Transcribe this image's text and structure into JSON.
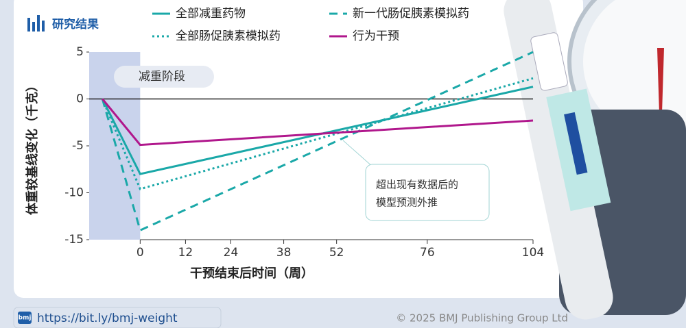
{
  "header": {
    "title": "研究结果"
  },
  "chart_data": {
    "type": "line",
    "x": [
      -10,
      0,
      104
    ],
    "series": [
      {
        "name": "全部减重药物",
        "color": "#1aa8a8",
        "style": "solid",
        "values": [
          0,
          -8,
          1.3
        ]
      },
      {
        "name": "新一代肠促胰素模拟药",
        "color": "#1aa8a8",
        "style": "dashed",
        "values": [
          0,
          -14,
          5
        ]
      },
      {
        "name": "全部肠促胰素模拟药",
        "color": "#1aa8a8",
        "style": "dotted",
        "values": [
          0,
          -9.6,
          2.2
        ]
      },
      {
        "name": "行为干预",
        "color": "#b0178c",
        "style": "solid",
        "values": [
          0,
          -4.9,
          -2.3
        ]
      }
    ],
    "xlim": [
      -13.5,
      104
    ],
    "xticks": [
      0,
      12,
      24,
      38,
      52,
      76,
      104
    ],
    "ylim": [
      -15,
      5
    ],
    "yticks": [
      5,
      0,
      -5,
      -10,
      -15
    ],
    "xlabel": "干预结束后时间（周）",
    "ylabel": "体重较基线变化（千克）",
    "annotations": {
      "phase": "减重阶段",
      "extrapolation": [
        "超出现有数据后的",
        "模型预测外推"
      ]
    }
  },
  "footer": {
    "url": "https://bit.ly/bmj-weight",
    "logo": "bmj",
    "copyright": "© 2025 BMJ Publishing Group Ltd"
  }
}
